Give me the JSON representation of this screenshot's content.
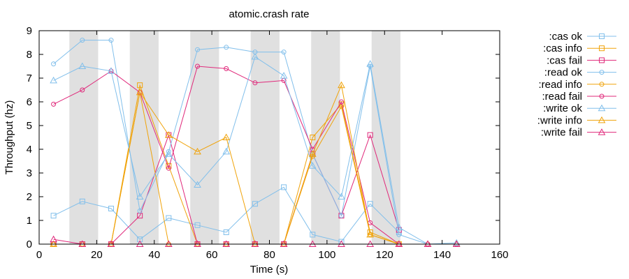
{
  "chart_data": {
    "type": "line",
    "title": "atomic.crash rate",
    "xlabel": "Time (s)",
    "ylabel": "Throughput (hz)",
    "xlim": [
      0,
      160
    ],
    "ylim": [
      0,
      9
    ],
    "xticks": [
      0,
      20,
      40,
      60,
      80,
      100,
      120,
      140,
      160
    ],
    "yticks": [
      0,
      1,
      2,
      3,
      4,
      5,
      6,
      7,
      8,
      9
    ],
    "grid": false,
    "legend_position": "outside-right",
    "shaded_intervals": [
      [
        10.5,
        20.5
      ],
      [
        31.5,
        41.5
      ],
      [
        52.5,
        62.5
      ],
      [
        73.5,
        83.5
      ],
      [
        94.5,
        104.5
      ],
      [
        115.5,
        125.5
      ]
    ],
    "series": [
      {
        "name": ":cas ok",
        "color": "#81bfeb",
        "marker": "square",
        "x": [
          5,
          15,
          25,
          35,
          45,
          55,
          65,
          75,
          85,
          95,
          105,
          115,
          125
        ],
        "y": [
          1.2,
          1.8,
          1.5,
          0.2,
          1.1,
          0.8,
          0.5,
          1.7,
          2.4,
          0.4,
          0.1,
          1.7,
          0.5
        ]
      },
      {
        "name": ":cas info",
        "color": "#f0a30a",
        "marker": "square",
        "x": [
          5,
          15,
          25,
          35,
          45,
          55,
          65,
          75,
          85,
          95,
          105,
          115,
          125
        ],
        "y": [
          0,
          0,
          0,
          6.7,
          3.3,
          0,
          0,
          0,
          0,
          4.5,
          5.9,
          0.5,
          0
        ]
      },
      {
        "name": ":cas fail",
        "color": "#e0287a",
        "marker": "square",
        "x": [
          5,
          15,
          25,
          35,
          45,
          55,
          65,
          75,
          85,
          95,
          105,
          115,
          125
        ],
        "y": [
          0,
          0,
          0,
          1.2,
          4.6,
          0,
          0,
          0,
          0,
          3.8,
          1.2,
          4.6,
          0.6
        ]
      },
      {
        "name": ":read ok",
        "color": "#81bfeb",
        "marker": "circle",
        "x": [
          5,
          15,
          25,
          35,
          45,
          55,
          65,
          75,
          85,
          95,
          105,
          115,
          125,
          135,
          145
        ],
        "y": [
          7.6,
          8.6,
          8.6,
          1.4,
          3.9,
          8.2,
          8.3,
          8.1,
          8.1,
          3.8,
          1.2,
          7.5,
          0.4,
          0,
          0
        ]
      },
      {
        "name": ":read info",
        "color": "#f0a30a",
        "marker": "circle",
        "x": [
          5,
          15,
          25,
          35,
          45,
          55,
          65,
          75,
          85,
          95,
          105,
          115,
          125,
          135,
          145
        ],
        "y": [
          0,
          0,
          0,
          6.4,
          0,
          0,
          0,
          0,
          0,
          3.7,
          5.8,
          0.4,
          0,
          0,
          0
        ]
      },
      {
        "name": ":read fail",
        "color": "#e0287a",
        "marker": "circle",
        "x": [
          5,
          15,
          25,
          35,
          45,
          55,
          65,
          75,
          85,
          95,
          105,
          115,
          125,
          135,
          145
        ],
        "y": [
          5.9,
          6.5,
          7.3,
          6.4,
          3.2,
          7.5,
          7.4,
          6.8,
          6.9,
          4.0,
          6.0,
          0.9,
          0,
          0,
          0
        ]
      },
      {
        "name": ":write ok",
        "color": "#81bfeb",
        "marker": "triangle",
        "x": [
          5,
          15,
          25,
          35,
          45,
          55,
          65,
          75,
          85,
          95,
          105,
          115,
          125,
          135,
          145
        ],
        "y": [
          6.9,
          7.5,
          7.3,
          2.0,
          3.8,
          2.5,
          3.9,
          7.9,
          7.1,
          3.3,
          2.0,
          7.6,
          0.7,
          0,
          0.05
        ]
      },
      {
        "name": ":write info",
        "color": "#f0a30a",
        "marker": "triangle",
        "x": [
          5,
          15,
          25,
          35,
          45,
          55,
          65,
          75,
          85,
          95,
          105,
          115,
          125,
          135,
          145
        ],
        "y": [
          0,
          0,
          0,
          6.4,
          4.6,
          3.9,
          4.5,
          0,
          0,
          3.8,
          6.7,
          0.4,
          0,
          0,
          0
        ]
      },
      {
        "name": ":write fail",
        "color": "#e0287a",
        "marker": "triangle",
        "x": [
          5,
          15,
          25,
          35,
          45,
          55,
          65,
          75,
          85,
          95,
          105,
          115,
          125,
          135,
          145
        ],
        "y": [
          0.2,
          0,
          0,
          0,
          0,
          0,
          0,
          0,
          0,
          0,
          0,
          0,
          0,
          0,
          0
        ]
      }
    ]
  }
}
